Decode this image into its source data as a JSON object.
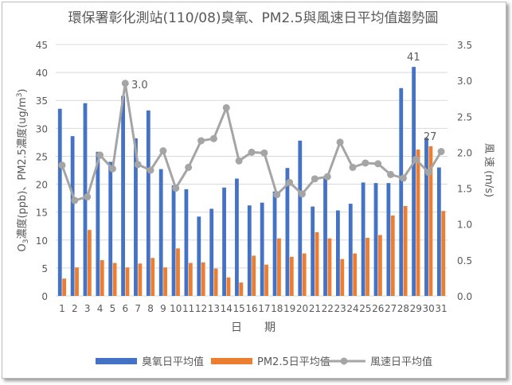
{
  "chart_data": {
    "type": "bar+line",
    "title": "環保署彰化測站(110/08)臭氧、PM2.5與風速日平均值趨勢圖",
    "xlabel": "日　　期",
    "ylabel": "O3濃度(ppb)、PM2.5濃度(ug/m3)",
    "ylabel_parts": {
      "a": "O",
      "sub": "3",
      "b": "濃度(ppb)、PM2.5濃度(ug/m",
      "sup": "3",
      "c": ")"
    },
    "y2label": "風 速 (m/s)",
    "ylim": [
      0,
      45
    ],
    "y2lim": [
      0,
      3.5
    ],
    "yticks": [
      "0",
      "5",
      "10",
      "15",
      "20",
      "25",
      "30",
      "35",
      "40",
      "45"
    ],
    "y2ticks": [
      "0.0",
      "0.5",
      "1.0",
      "1.5",
      "2.0",
      "2.5",
      "3.0",
      "3.5"
    ],
    "grid": true,
    "legend_position": "bottom",
    "categories": [
      "1",
      "2",
      "3",
      "4",
      "5",
      "6",
      "7",
      "8",
      "9",
      "10",
      "11",
      "12",
      "13",
      "14",
      "15",
      "16",
      "17",
      "18",
      "19",
      "20",
      "21",
      "22",
      "23",
      "24",
      "25",
      "26",
      "27",
      "28",
      "29",
      "30",
      "31"
    ],
    "series": [
      {
        "name": "臭氧日平均值",
        "type": "bar",
        "axis": "left",
        "color": "#4472C4",
        "values": [
          33.5,
          28.6,
          34.5,
          25.8,
          24.0,
          35.8,
          28.2,
          33.2,
          22.7,
          19.8,
          19.1,
          14.2,
          15.6,
          19.4,
          21.0,
          16.2,
          16.7,
          18.7,
          22.9,
          27.8,
          16.0,
          21.3,
          15.3,
          16.5,
          20.3,
          20.2,
          20.2,
          37.2,
          41,
          28.3,
          23.0
        ]
      },
      {
        "name": "PM2.5日平均值",
        "type": "bar",
        "axis": "left",
        "color": "#ED7D31",
        "values": [
          3.1,
          5.1,
          11.8,
          6.4,
          5.9,
          5.1,
          5.8,
          6.8,
          5.1,
          8.5,
          5.9,
          6.0,
          4.9,
          3.3,
          2.4,
          7.2,
          5.6,
          10.3,
          7.0,
          7.6,
          11.4,
          10.3,
          6.6,
          7.6,
          10.4,
          10.9,
          14.4,
          16.1,
          26.2,
          26.8,
          15.2
        ]
      },
      {
        "name": "風速日平均值",
        "type": "line",
        "axis": "right",
        "color": "#A5A5A5",
        "values": [
          1.82,
          1.33,
          1.38,
          1.96,
          1.77,
          2.96,
          1.83,
          1.75,
          2.02,
          1.5,
          1.79,
          2.16,
          2.19,
          2.62,
          1.88,
          2.0,
          1.99,
          1.41,
          1.58,
          1.42,
          1.63,
          1.66,
          2.14,
          1.79,
          1.85,
          1.84,
          1.69,
          1.64,
          1.9,
          1.72,
          2.01
        ]
      }
    ],
    "annotations": [
      {
        "series": 2,
        "index": 5,
        "text": "3.0"
      },
      {
        "series": 0,
        "index": 28,
        "text": "41"
      },
      {
        "series": 1,
        "index": 29,
        "text": "27"
      }
    ]
  }
}
